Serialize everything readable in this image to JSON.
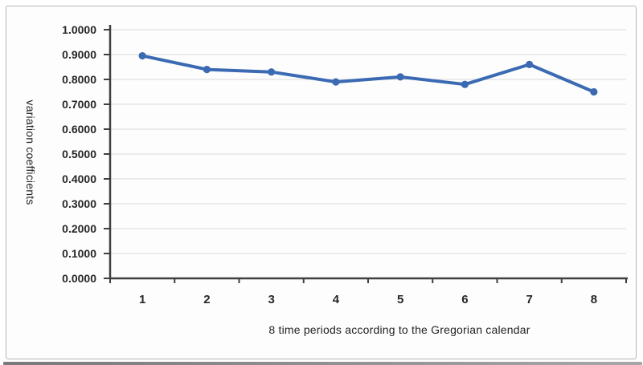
{
  "chart_data": {
    "type": "line",
    "title": "",
    "categories": [
      "1",
      "2",
      "3",
      "4",
      "5",
      "6",
      "7",
      "8"
    ],
    "values": [
      0.895,
      0.84,
      0.83,
      0.79,
      0.81,
      0.78,
      0.86,
      0.75
    ],
    "xlabel": "8 time periods according to the Gregorian calendar",
    "ylabel": "variation coefficients",
    "ylim": [
      0,
      1
    ],
    "ytick_step": 0.1,
    "ytick_labels": [
      "0.0000",
      "0.1000",
      "0.2000",
      "0.3000",
      "0.4000",
      "0.5000",
      "0.6000",
      "0.7000",
      "0.8000",
      "0.9000",
      "1.0000"
    ],
    "grid": "horizontal",
    "legend": "none",
    "marker": "circle"
  },
  "colors": {
    "series_line": "#3b6ab3",
    "axis": "#3f3f3f",
    "gridline": "#d9d9d9",
    "tick_text": "#262626",
    "title_text": "#242424",
    "figure_border": "#b4b4b4",
    "background": "#fdfdfd"
  }
}
